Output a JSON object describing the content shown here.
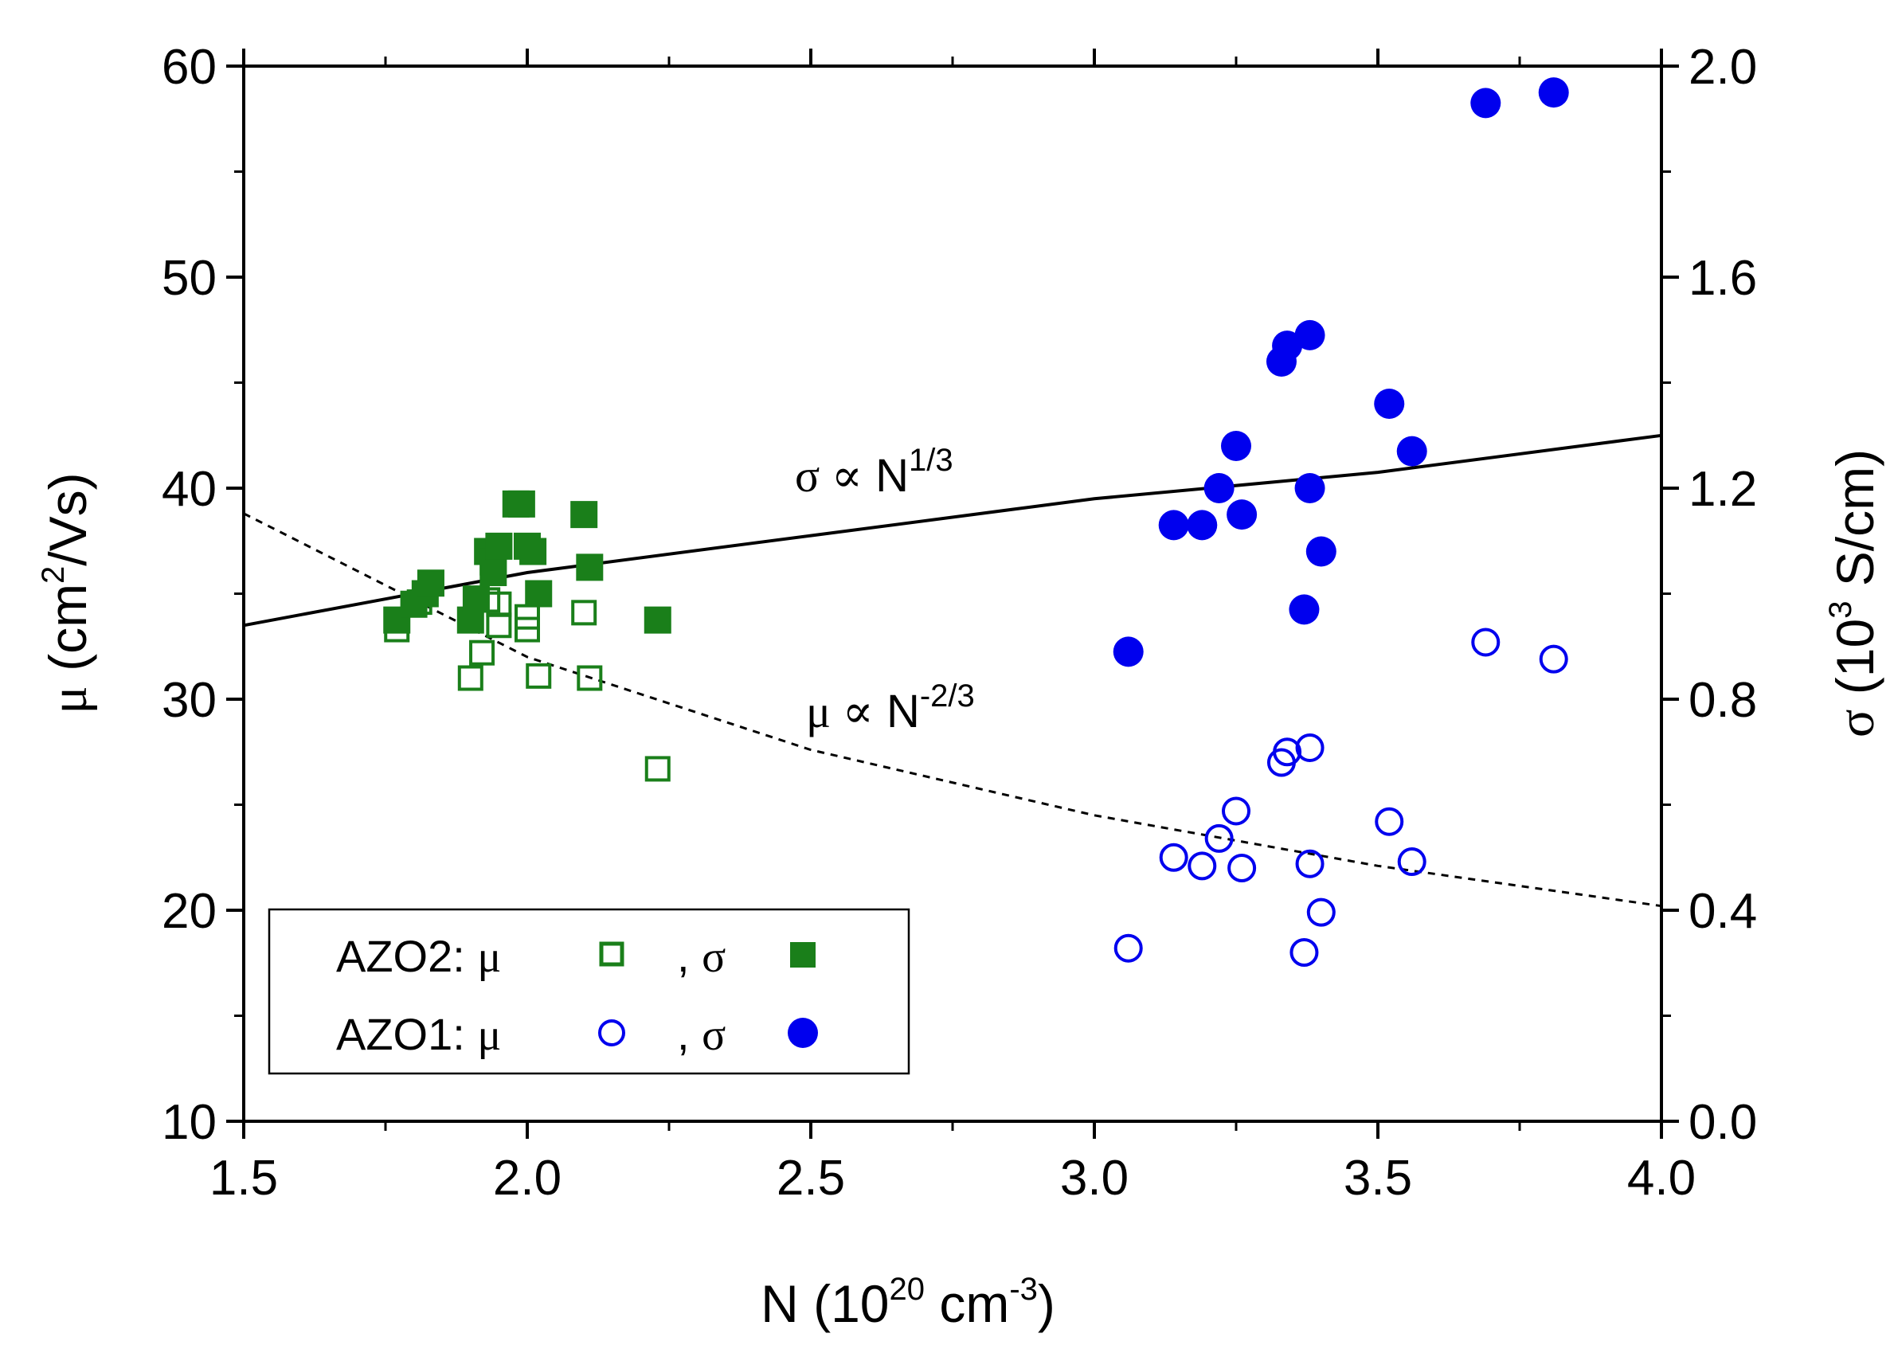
{
  "chart_data": {
    "type": "scatter",
    "xlabel": {
      "base": "N (10",
      "sup1": "20",
      "mid": " cm",
      "sup2": "-3",
      "end": ")"
    },
    "ylabel_left": {
      "sym": "μ",
      "base": " (cm",
      "sup": "2",
      "end": "/Vs)"
    },
    "ylabel_right": {
      "sym": "σ",
      "base": " (10",
      "sup": "3",
      "end": " S/cm)"
    },
    "xlim": [
      1.5,
      4.0
    ],
    "ylim_left": [
      10,
      60
    ],
    "ylim_right": [
      0.0,
      2.0
    ],
    "x_ticks": [
      "1.5",
      "2.0",
      "2.5",
      "3.0",
      "3.5",
      "4.0"
    ],
    "y_left_ticks": [
      "10",
      "20",
      "30",
      "40",
      "50",
      "60"
    ],
    "y_right_ticks": [
      "0.0",
      "0.4",
      "0.8",
      "1.2",
      "1.6",
      "2.0"
    ],
    "annotations": {
      "sigma_fit": {
        "sym": "σ ∝",
        "base": " N",
        "sup": "1/3"
      },
      "mu_fit": {
        "sym": "μ ∝",
        "base": " N",
        "sup": "-2/3"
      }
    },
    "fits": [
      {
        "name": "sigma_fit",
        "axis": "right",
        "style": "solid",
        "points": [
          [
            1.5,
            0.94
          ],
          [
            2.0,
            1.04
          ],
          [
            2.5,
            1.11
          ],
          [
            3.0,
            1.18
          ],
          [
            3.5,
            1.23
          ],
          [
            4.0,
            1.3
          ]
        ]
      },
      {
        "name": "mu_fit",
        "axis": "left",
        "style": "dashed",
        "points": [
          [
            1.5,
            38.8
          ],
          [
            2.0,
            32.0
          ],
          [
            2.5,
            27.6
          ],
          [
            3.0,
            24.5
          ],
          [
            3.5,
            22.1
          ],
          [
            4.0,
            20.2
          ]
        ]
      }
    ],
    "series": [
      {
        "name": "AZO2 mobility",
        "axis": "left",
        "marker": "open-square",
        "color": "#1a7f1a",
        "points": [
          [
            1.77,
            33.3
          ],
          [
            1.81,
            34.6
          ],
          [
            1.82,
            35.0
          ],
          [
            1.9,
            31.0
          ],
          [
            1.92,
            32.2
          ],
          [
            1.93,
            34.7
          ],
          [
            1.95,
            33.5
          ],
          [
            1.95,
            34.5
          ],
          [
            2.0,
            33.3
          ],
          [
            2.0,
            33.9
          ],
          [
            2.02,
            31.1
          ],
          [
            2.1,
            34.1
          ],
          [
            2.11,
            31.0
          ],
          [
            2.23,
            26.7
          ]
        ]
      },
      {
        "name": "AZO2 conductivity",
        "axis": "right",
        "marker": "filled-square",
        "color": "#1a7f1a",
        "points": [
          [
            1.77,
            0.95
          ],
          [
            1.8,
            0.98
          ],
          [
            1.82,
            1.0
          ],
          [
            1.83,
            1.02
          ],
          [
            1.9,
            0.95
          ],
          [
            1.91,
            0.99
          ],
          [
            1.93,
            1.08
          ],
          [
            1.94,
            1.06
          ],
          [
            1.94,
            1.04
          ],
          [
            1.95,
            1.09
          ],
          [
            1.98,
            1.17
          ],
          [
            1.99,
            1.17
          ],
          [
            2.0,
            1.09
          ],
          [
            2.01,
            1.08
          ],
          [
            2.02,
            1.0
          ],
          [
            2.1,
            1.15
          ],
          [
            2.11,
            1.05
          ],
          [
            2.23,
            0.95
          ]
        ]
      },
      {
        "name": "AZO1 mobility",
        "axis": "left",
        "marker": "open-circle",
        "color": "#0000ee",
        "points": [
          [
            3.06,
            18.2
          ],
          [
            3.14,
            22.5
          ],
          [
            3.19,
            22.1
          ],
          [
            3.22,
            23.4
          ],
          [
            3.25,
            24.7
          ],
          [
            3.26,
            22.0
          ],
          [
            3.33,
            27.0
          ],
          [
            3.34,
            27.5
          ],
          [
            3.37,
            18.0
          ],
          [
            3.38,
            27.7
          ],
          [
            3.38,
            22.2
          ],
          [
            3.4,
            19.9
          ],
          [
            3.52,
            24.2
          ],
          [
            3.56,
            22.3
          ],
          [
            3.69,
            32.7
          ],
          [
            3.81,
            31.9
          ]
        ]
      },
      {
        "name": "AZO1 conductivity",
        "axis": "right",
        "marker": "filled-circle",
        "color": "#0000ee",
        "points": [
          [
            3.06,
            0.89
          ],
          [
            3.14,
            1.13
          ],
          [
            3.19,
            1.13
          ],
          [
            3.22,
            1.2
          ],
          [
            3.25,
            1.28
          ],
          [
            3.26,
            1.15
          ],
          [
            3.33,
            1.44
          ],
          [
            3.34,
            1.47
          ],
          [
            3.37,
            0.97
          ],
          [
            3.38,
            1.49
          ],
          [
            3.38,
            1.2
          ],
          [
            3.4,
            1.08
          ],
          [
            3.52,
            1.36
          ],
          [
            3.56,
            1.27
          ],
          [
            3.69,
            1.93
          ],
          [
            3.81,
            1.95
          ]
        ]
      }
    ],
    "legend": {
      "rows": [
        {
          "label": "AZO2: ",
          "sym1": "μ",
          "sep": ", ",
          "sym2": "σ",
          "open_marker": "open-square",
          "filled_marker": "filled-square",
          "color": "#1a7f1a"
        },
        {
          "label": "AZO1: ",
          "sym1": "μ",
          "sep": ", ",
          "sym2": "σ",
          "open_marker": "open-circle",
          "filled_marker": "filled-circle",
          "color": "#0000ee"
        }
      ]
    }
  }
}
